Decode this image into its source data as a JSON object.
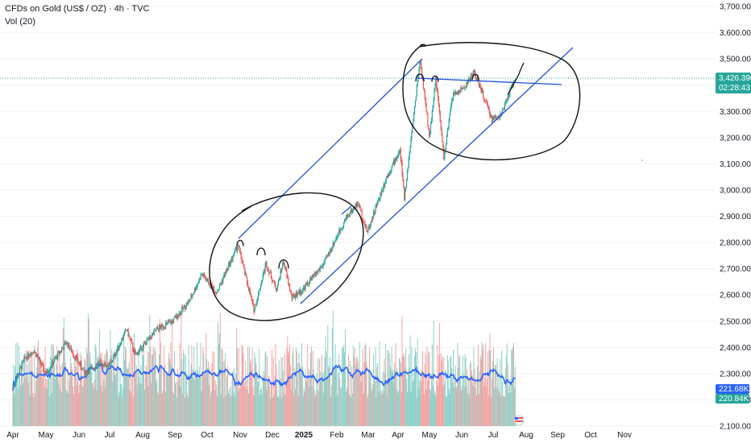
{
  "legend": {
    "title": "CFDs on Gold (US$ / OZ) · 4h · TVC",
    "volume": "Vol (20)"
  },
  "price_tag": {
    "value": "3,426.390",
    "countdown": "02:28:43"
  },
  "volume_tags": {
    "volume_ma": "221.68K",
    "volume": "220.84K"
  },
  "colors": {
    "up": "#26a69a",
    "down": "#ef5350",
    "vol_up": "#8fd1c9",
    "vol_down": "#f3a5a3",
    "vol_ma": "#2962ff",
    "drawing": "#1e4fd8",
    "ink": "#111111",
    "price_tag": "#26a69a",
    "vol_ma_tag": "#2962ff",
    "vol_tag": "#26a69a"
  },
  "chart_data": {
    "type": "candlestick",
    "symbol": "CFDs on Gold (US$ / OZ)",
    "timeframe": "4h",
    "y_axis": {
      "ticks": [
        "3,700.000",
        "3,600.000",
        "3,500.000",
        "3,400.000",
        "3,300.000",
        "3,200.000",
        "3,100.000",
        "3,000.000",
        "2,900.000",
        "2,800.000",
        "2,700.000",
        "2,600.000",
        "2,500.000",
        "2,400.000",
        "2,300.000",
        "2,200.000",
        "2,100.000"
      ],
      "range": [
        2100,
        3700
      ]
    },
    "x_axis": {
      "ticks": [
        {
          "label": "Apr",
          "bold": false
        },
        {
          "label": "May",
          "bold": false
        },
        {
          "label": "Jun",
          "bold": false
        },
        {
          "label": "Jul",
          "bold": false
        },
        {
          "label": "Aug",
          "bold": false
        },
        {
          "label": "Sep",
          "bold": false
        },
        {
          "label": "Oct",
          "bold": false
        },
        {
          "label": "Nov",
          "bold": false
        },
        {
          "label": "Dec",
          "bold": false
        },
        {
          "label": "2025",
          "bold": true
        },
        {
          "label": "Feb",
          "bold": false
        },
        {
          "label": "Mar",
          "bold": false
        },
        {
          "label": "Apr",
          "bold": false
        },
        {
          "label": "May",
          "bold": false
        },
        {
          "label": "Jun",
          "bold": false
        },
        {
          "label": "Jul",
          "bold": false
        },
        {
          "label": "Aug",
          "bold": false
        },
        {
          "label": "Sep",
          "bold": false
        },
        {
          "label": "Oct",
          "bold": false
        },
        {
          "label": "Nov",
          "bold": false
        }
      ]
    },
    "price_path": [
      [
        "2024-04-01",
        2250
      ],
      [
        "2024-04-12",
        2360
      ],
      [
        "2024-04-20",
        2390
      ],
      [
        "2024-05-01",
        2300
      ],
      [
        "2024-05-20",
        2420
      ],
      [
        "2024-06-07",
        2300
      ],
      [
        "2024-06-20",
        2340
      ],
      [
        "2024-07-01",
        2330
      ],
      [
        "2024-07-17",
        2470
      ],
      [
        "2024-07-25",
        2370
      ],
      [
        "2024-08-15",
        2470
      ],
      [
        "2024-08-30",
        2500
      ],
      [
        "2024-09-15",
        2580
      ],
      [
        "2024-09-26",
        2680
      ],
      [
        "2024-10-10",
        2610
      ],
      [
        "2024-10-30",
        2790
      ],
      [
        "2024-11-14",
        2540
      ],
      [
        "2024-11-25",
        2720
      ],
      [
        "2024-12-05",
        2620
      ],
      [
        "2024-12-12",
        2730
      ],
      [
        "2024-12-20",
        2590
      ],
      [
        "2024-12-31",
        2620
      ],
      [
        "2025-01-20",
        2720
      ],
      [
        "2025-02-10",
        2900
      ],
      [
        "2025-02-20",
        2950
      ],
      [
        "2025-02-28",
        2840
      ],
      [
        "2025-03-20",
        3050
      ],
      [
        "2025-04-03",
        3150
      ],
      [
        "2025-04-07",
        2970
      ],
      [
        "2025-04-22",
        3500
      ],
      [
        "2025-05-01",
        3200
      ],
      [
        "2025-05-07",
        3430
      ],
      [
        "2025-05-15",
        3120
      ],
      [
        "2025-05-23",
        3360
      ],
      [
        "2025-06-03",
        3390
      ],
      [
        "2025-06-13",
        3450
      ],
      [
        "2025-06-30",
        3270
      ],
      [
        "2025-07-09",
        3290
      ],
      [
        "2025-07-22",
        3430
      ]
    ],
    "volume_scale": {
      "ma_level": "221.68K",
      "last": "220.84K"
    },
    "annotations": [
      "ascending channel (two parallel trend lines)",
      "horizontal neckline near 3,426 pivot",
      "hand-drawn circles marking consolidation zones",
      "hand-drawn peak loops over swing highs"
    ]
  }
}
